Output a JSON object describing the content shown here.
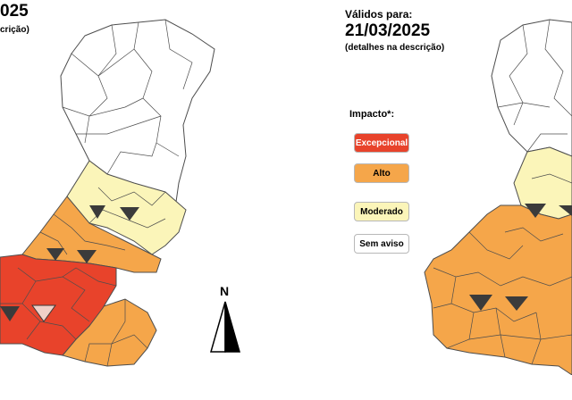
{
  "left_panel": {
    "date_fragment": "025",
    "description_fragment": "crição)"
  },
  "right_panel": {
    "valid_label": "Válidos para:",
    "valid_date": "21/03/2025",
    "description": "(detalhes na descrição)"
  },
  "legend": {
    "title": "Impacto*:",
    "items": [
      {
        "label": "Excepcional",
        "color": "#e8432b",
        "text_color": "#ffffff"
      },
      {
        "label": "Alto",
        "color": "#f5a64a",
        "text_color": "#000000"
      },
      {
        "label": "Moderado",
        "color": "#fbf5b9",
        "text_color": "#000000"
      },
      {
        "label": "Sem aviso",
        "color": "#ffffff",
        "text_color": "#000000"
      }
    ]
  },
  "north_arrow": {
    "letter": "N"
  },
  "colors": {
    "boundary": "#4d4d4d",
    "excepcional": "#e8432b",
    "alto": "#f5a64a",
    "moderado": "#fbf5b9",
    "sem_aviso": "#ffffff"
  }
}
